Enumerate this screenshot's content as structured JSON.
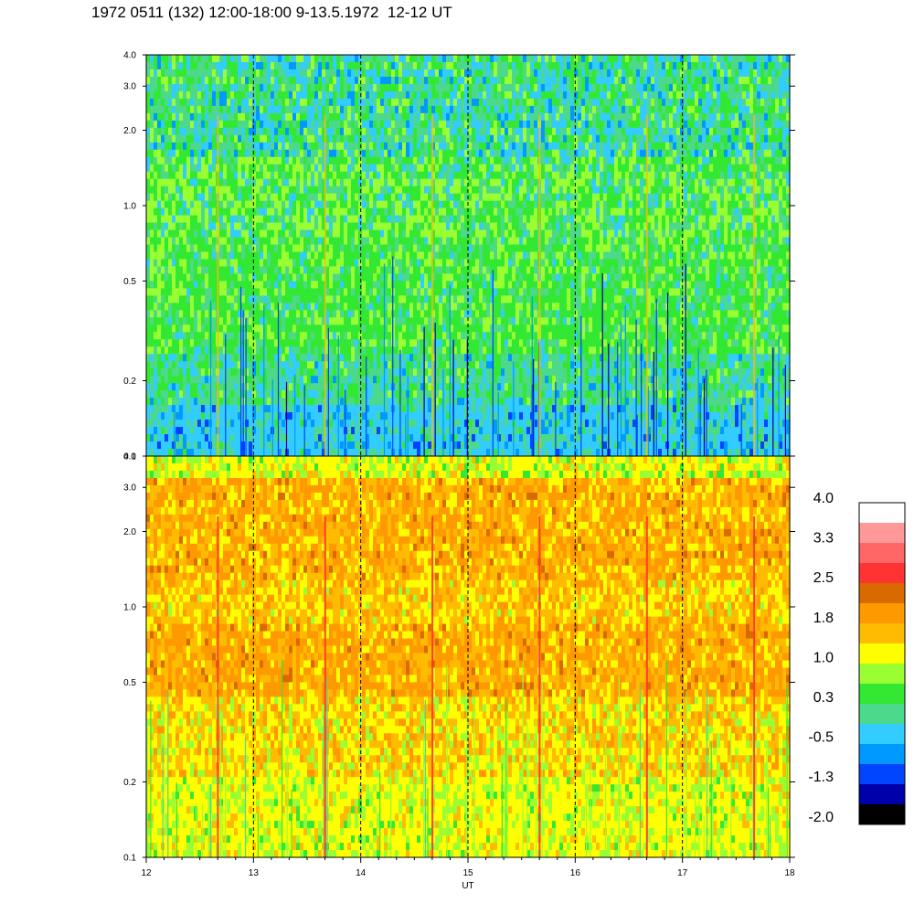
{
  "title": "1972 0511 (132) 12:00-18:00 9-13.5.1972  12-12 UT",
  "chart_data": [
    {
      "type": "heatmap",
      "panel": "upper",
      "x_range": [
        12,
        18
      ],
      "y_range": [
        0.1,
        4.0
      ],
      "y_scale": "log",
      "y_ticks": [
        "0.1",
        "0.2",
        "0.5",
        "1.0",
        "2.0",
        "3.0",
        "4.0"
      ],
      "hour_markers": [
        13,
        14,
        15,
        16,
        17
      ],
      "dominant_levels": {
        "low_freq": "-0.5",
        "mid_freq": "0.3",
        "high_freq": "-0.5 to 0.3"
      }
    },
    {
      "type": "heatmap",
      "panel": "lower",
      "x_range": [
        12,
        18
      ],
      "y_range": [
        0.1,
        4.0
      ],
      "y_scale": "log",
      "y_ticks": [
        "0.1",
        "0.2",
        "0.5",
        "1.0",
        "2.0",
        "3.0",
        "4.0"
      ],
      "hour_markers": [
        13,
        14,
        15,
        16,
        17
      ],
      "x_ticks": [
        "12",
        "13",
        "14",
        "15",
        "16",
        "17",
        "18"
      ],
      "xlabel": "UT",
      "dominant_levels": {
        "low_freq": "1.0",
        "mid_freq": "1.8",
        "high_freq": "1.8"
      }
    }
  ],
  "colorbar": {
    "labels": [
      "4.0",
      "3.3",
      "2.5",
      "1.8",
      "1.0",
      "0.3",
      "-0.5",
      "-1.3",
      "-2.0"
    ],
    "colors": [
      "#ffffff",
      "#ff9999",
      "#ff6666",
      "#ff3333",
      "#d96a00",
      "#ff9900",
      "#ffbb00",
      "#ffff00",
      "#99ff33",
      "#33e833",
      "#4cd98c",
      "#33ccff",
      "#0099ff",
      "#0044ff",
      "#0000aa",
      "#000000"
    ]
  },
  "palette": {
    "black": "#000000",
    "navy": "#0000aa",
    "blue": "#0044ff",
    "azure": "#0099ff",
    "cyan": "#33ccff",
    "teal": "#4cd98c",
    "green": "#33e833",
    "lime": "#99ff33",
    "yellow": "#ffff00",
    "amber": "#ffbb00",
    "orange": "#ff9900",
    "dark_orange": "#d96a00",
    "red": "#ff3333"
  }
}
